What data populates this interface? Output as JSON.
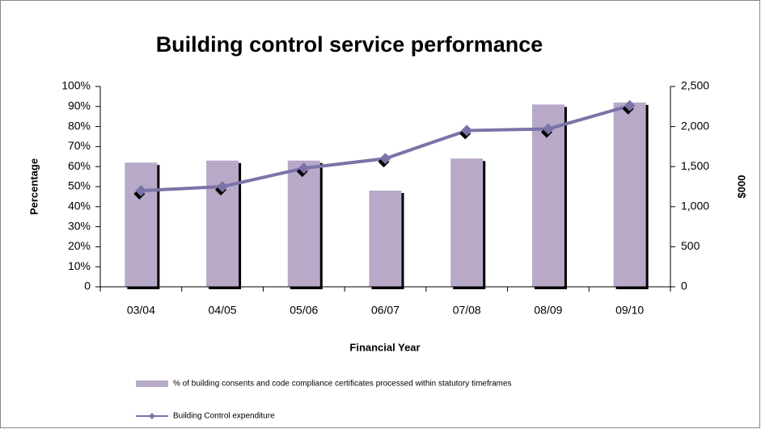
{
  "chart_data": {
    "type": "bar_line",
    "title": "Building control service performance",
    "x_label": "Financial Year",
    "y_label": "Percentage",
    "y2_label": "$000",
    "categories": [
      "03/04",
      "04/05",
      "05/06",
      "06/07",
      "07/08",
      "08/09",
      "09/10"
    ],
    "series": [
      {
        "name": "% of building consents and code compliance certificates processed within statutory timeframes",
        "type": "bar",
        "color": "#b8a9c9",
        "values": [
          62,
          63,
          63,
          48,
          64,
          91,
          92
        ]
      },
      {
        "name": "Building Control expenditure",
        "type": "line",
        "axis": "y2",
        "color": "#7b73a8",
        "values": [
          1200,
          1250,
          1480,
          1600,
          1950,
          1970,
          2260
        ]
      }
    ],
    "ylim": [
      0,
      100
    ],
    "yticks": [
      0,
      {
        "value": 10,
        "label": "10%"
      },
      {
        "value": 20,
        "label": "20%"
      },
      {
        "value": 30,
        "label": "30%"
      },
      {
        "value": 40,
        "label": "40%"
      },
      {
        "value": 50,
        "label": "50%"
      },
      {
        "value": 60,
        "label": "60%"
      },
      {
        "value": 70,
        "label": "70%"
      },
      {
        "value": 80,
        "label": "80%"
      },
      {
        "value": 90,
        "label": "90%"
      },
      {
        "value": 100,
        "label": "100%"
      }
    ],
    "y2lim": [
      0,
      2500
    ],
    "y2ticks": [
      0,
      500,
      {
        "value": 1000,
        "label": "1,000"
      },
      {
        "value": 1500,
        "label": "1,500"
      },
      {
        "value": 2000,
        "label": "2,000"
      },
      {
        "value": 2500,
        "label": "2,500"
      }
    ],
    "legend": "bottom-left"
  }
}
